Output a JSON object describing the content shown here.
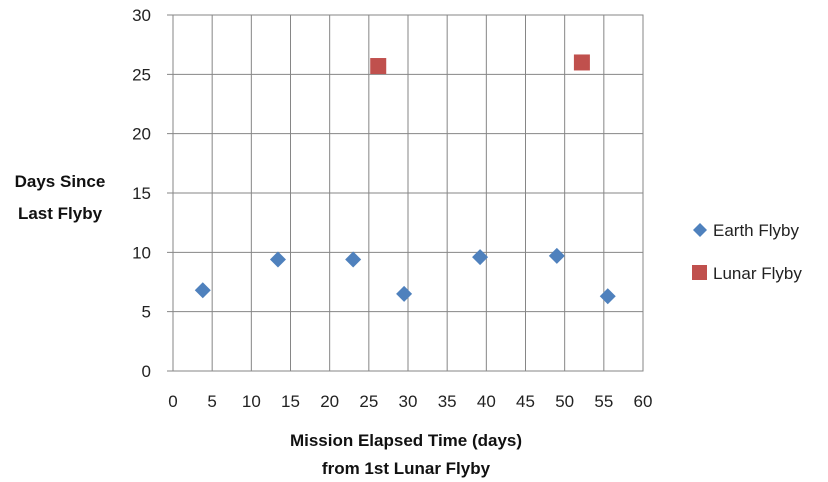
{
  "chart_data": {
    "type": "scatter",
    "xlabel": [
      "Mission Elapsed Time (days)",
      "from 1st Lunar Flyby"
    ],
    "ylabel": [
      "Days Since",
      "Last Flyby"
    ],
    "xlim": [
      0,
      60
    ],
    "ylim": [
      0,
      30
    ],
    "x_ticks": [
      "0",
      "5",
      "10",
      "15",
      "20",
      "25",
      "30",
      "35",
      "40",
      "45",
      "50",
      "55",
      "60"
    ],
    "y_ticks": [
      "0",
      "5",
      "10",
      "15",
      "20",
      "25",
      "30"
    ],
    "grid": true,
    "legend_position": "right",
    "series": [
      {
        "name": "Earth Flyby",
        "marker": "diamond",
        "color": "#4F81BD",
        "x": [
          3.8,
          13.4,
          23.0,
          29.5,
          39.2,
          49.0,
          55.5
        ],
        "y": [
          6.8,
          9.4,
          9.4,
          6.5,
          9.6,
          9.7,
          6.3
        ]
      },
      {
        "name": "Lunar Flyby",
        "marker": "square",
        "color": "#C0504D",
        "x": [
          26.2,
          52.2
        ],
        "y": [
          25.7,
          26.0
        ]
      }
    ]
  }
}
